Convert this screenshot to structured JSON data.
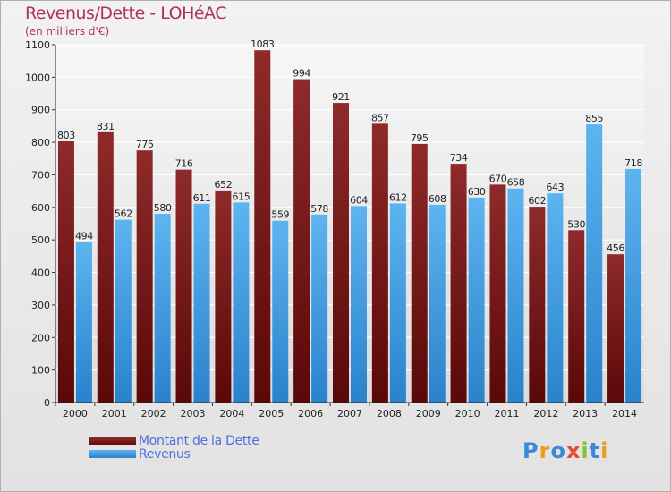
{
  "title": "Revenus/Dette - LOHéAC",
  "subtitle": "(en milliers d'€)",
  "logo": "Proxiti",
  "colors": {
    "dette": "#7a1a1a",
    "revenus": "#3b9be0",
    "title": "#b03060",
    "legend_text": "#4d6fe0"
  },
  "chart_data": {
    "type": "bar",
    "categories": [
      "2000",
      "2001",
      "2002",
      "2003",
      "2004",
      "2005",
      "2006",
      "2007",
      "2008",
      "2009",
      "2010",
      "2011",
      "2012",
      "2013",
      "2014"
    ],
    "series": [
      {
        "name": "Montant de la Dette",
        "values": [
          803,
          831,
          775,
          716,
          652,
          1083,
          994,
          921,
          857,
          795,
          734,
          670,
          602,
          530,
          456
        ]
      },
      {
        "name": "Revenus",
        "values": [
          494,
          562,
          580,
          611,
          615,
          559,
          578,
          604,
          612,
          608,
          630,
          658,
          643,
          855,
          718
        ]
      }
    ],
    "ylim": [
      0,
      1100
    ],
    "yticks": [
      0,
      100,
      200,
      300,
      400,
      500,
      600,
      700,
      800,
      900,
      1000,
      1100
    ],
    "grid": true,
    "legend_position": "bottom-left"
  }
}
